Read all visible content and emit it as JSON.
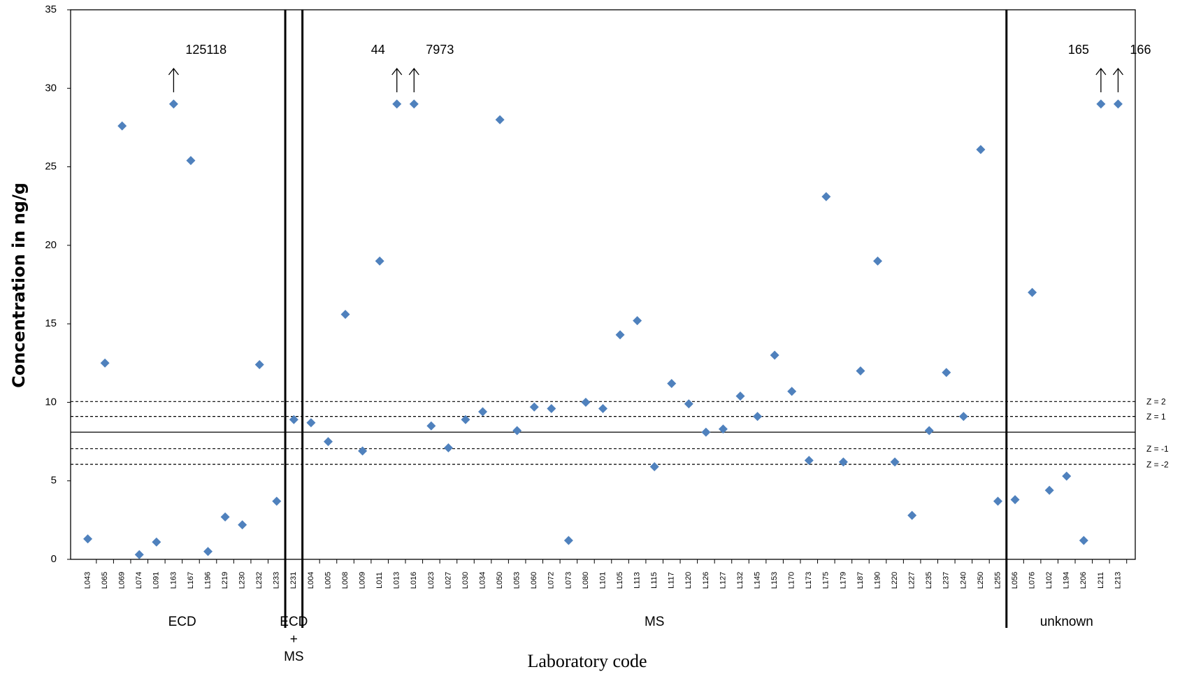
{
  "chart_data": {
    "type": "scatter",
    "y_label": "Concentration in ng/g",
    "x_label": "Laboratory code",
    "color": "#4f81bd",
    "ylim": [
      0,
      35
    ],
    "yticks": [
      0,
      5,
      10,
      15,
      20,
      25,
      30,
      35
    ],
    "categories": [
      "L043",
      "L065",
      "L069",
      "L074",
      "L091",
      "L163",
      "L167",
      "L196",
      "L219",
      "L230",
      "L232",
      "L233",
      "L231",
      "L004",
      "L005",
      "L008",
      "L009",
      "L011",
      "L013",
      "L016",
      "L023",
      "L027",
      "L030",
      "L034",
      "L050",
      "L053",
      "L060",
      "L072",
      "L073",
      "L080",
      "L101",
      "L105",
      "L113",
      "L115",
      "L117",
      "L120",
      "L126",
      "L127",
      "L132",
      "L145",
      "L153",
      "L170",
      "L173",
      "L175",
      "L179",
      "L187",
      "L190",
      "L220",
      "L227",
      "L235",
      "L237",
      "L240",
      "L250",
      "L255",
      "L056",
      "L076",
      "L102",
      "L194",
      "L206",
      "L211",
      "L213"
    ],
    "values": [
      1.3,
      12.5,
      27.6,
      0.3,
      1.1,
      29,
      25.4,
      0.5,
      2.7,
      2.2,
      12.4,
      3.7,
      8.9,
      8.7,
      7.5,
      15.6,
      6.9,
      19,
      29,
      29,
      8.5,
      7.1,
      8.9,
      9.4,
      28,
      8.2,
      9.7,
      9.6,
      1.2,
      10,
      9.6,
      14.3,
      15.2,
      5.9,
      11.2,
      9.9,
      8.1,
      8.3,
      10.4,
      9.1,
      13,
      10.7,
      6.3,
      23.1,
      6.2,
      12.0,
      19,
      6.2,
      2.8,
      8.2,
      11.9,
      9.1,
      26.1,
      3.7,
      3.8,
      17,
      4.4,
      5.3,
      1.2,
      29,
      29
    ],
    "reference_lines": [
      {
        "value": 10.05,
        "label": "Z = 2",
        "style": "dashed"
      },
      {
        "value": 9.1,
        "label": "Z = 1",
        "style": "dashed"
      },
      {
        "value": 8.1,
        "style": "solid"
      },
      {
        "value": 7.05,
        "label": "Z = -1",
        "style": "dashed"
      },
      {
        "value": 6.05,
        "label": "Z = -2",
        "style": "dashed"
      }
    ],
    "annotations": [
      {
        "text": "125118",
        "category": "L163"
      },
      {
        "text": "44",
        "category": "L013"
      },
      {
        "text": "7973",
        "category": "L016"
      },
      {
        "text": "165",
        "category": "L211"
      },
      {
        "text": "166",
        "category": "L213"
      }
    ],
    "groups": [
      {
        "label": [
          "ECD"
        ],
        "from": "L043",
        "to": "L233"
      },
      {
        "label": [
          "ECD",
          "+",
          "MS"
        ],
        "from": "L231",
        "to": "L231"
      },
      {
        "label": [
          "MS"
        ],
        "from": "L004",
        "to": "L255"
      },
      {
        "label": [
          "unknown"
        ],
        "from": "L056",
        "to": "L213"
      }
    ]
  }
}
